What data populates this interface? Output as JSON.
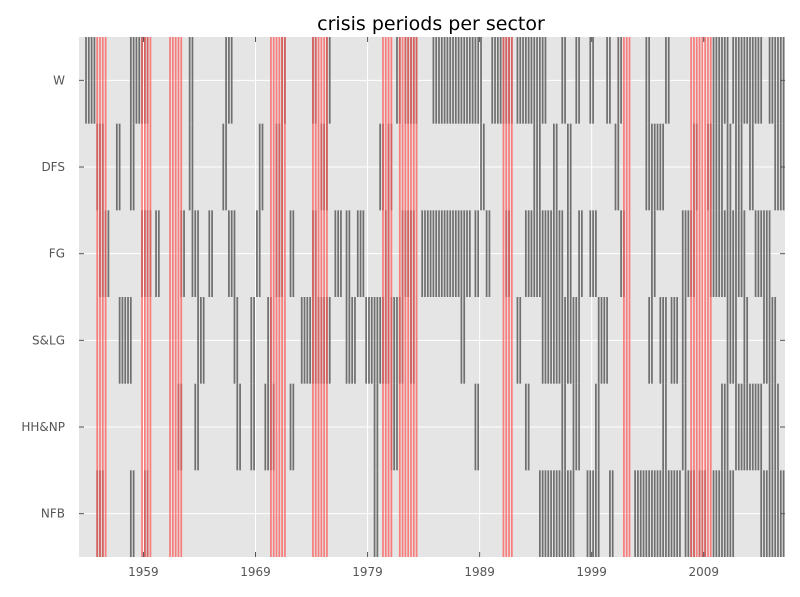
{
  "chart_data": {
    "type": "heatmap",
    "title": "crisis periods per sector",
    "xlabel": "",
    "ylabel": "",
    "grid": true,
    "background": "#e5e5e5",
    "xlim": [
      1953.25,
      2016.25
    ],
    "x_ticks": [
      1959,
      1969,
      1979,
      1989,
      1999,
      2009
    ],
    "x_tick_labels": [
      "1959",
      "1969",
      "1979",
      "1989",
      "1999",
      "2009"
    ],
    "sectors": [
      "W",
      "DFS",
      "FG",
      "S&LG",
      "HH&NP",
      "NFB"
    ],
    "sector_color": "#707070",
    "sector_periods": {
      "W": [
        [
          1953.75,
          1954.5
        ],
        [
          1957.75,
          1959.25
        ],
        [
          1963.0,
          1963.25
        ],
        [
          1966.25,
          1966.75
        ],
        [
          1971.25,
          1971.5
        ],
        [
          1974.0,
          1974.25
        ],
        [
          1975.25,
          1975.5
        ],
        [
          1981.5,
          1981.75
        ],
        [
          1982.25,
          1983.25
        ],
        [
          1984.75,
          1989.0
        ],
        [
          1990.0,
          1991.75
        ],
        [
          1992.25,
          1994.75
        ],
        [
          1996.25,
          1996.5
        ],
        [
          1997.5,
          1997.75
        ],
        [
          1998.75,
          1999.0
        ],
        [
          2000.25,
          2000.5
        ],
        [
          2001.25,
          2001.5
        ],
        [
          2003.75,
          2004.0
        ],
        [
          2005.5,
          2005.75
        ],
        [
          2009.75,
          2011.0
        ],
        [
          2011.5,
          2014.0
        ],
        [
          2014.75,
          2016.0
        ]
      ],
      "DFS": [
        [
          1954.75,
          1955.25
        ],
        [
          1956.5,
          1956.75
        ],
        [
          1957.75,
          1958.0
        ],
        [
          1963.0,
          1963.25
        ],
        [
          1966.0,
          1966.25
        ],
        [
          1969.25,
          1969.5
        ],
        [
          1970.75,
          1971.25
        ],
        [
          1974.75,
          1975.25
        ],
        [
          1980.0,
          1980.25
        ],
        [
          1980.75,
          1981.0
        ],
        [
          1989.0,
          1989.25
        ],
        [
          1993.75,
          1994.25
        ],
        [
          1995.5,
          1995.75
        ],
        [
          1996.75,
          1997.0
        ],
        [
          2001.0,
          2001.25
        ],
        [
          2003.75,
          2005.25
        ],
        [
          2008.0,
          2008.25
        ],
        [
          2009.25,
          2010.5
        ],
        [
          2011.0,
          2011.25
        ],
        [
          2011.75,
          2012.25
        ],
        [
          2013.0,
          2013.25
        ],
        [
          2015.25,
          2016.0
        ]
      ],
      "FG": [
        [
          1955.0,
          1955.75
        ],
        [
          1958.75,
          1959.5
        ],
        [
          1960.0,
          1960.25
        ],
        [
          1962.25,
          1962.5
        ],
        [
          1963.25,
          1963.75
        ],
        [
          1964.75,
          1965.0
        ],
        [
          1966.5,
          1967.0
        ],
        [
          1969.0,
          1969.25
        ],
        [
          1970.75,
          1971.25
        ],
        [
          1972.0,
          1972.25
        ],
        [
          1974.0,
          1974.25
        ],
        [
          1976.0,
          1976.5
        ],
        [
          1977.0,
          1977.25
        ],
        [
          1978.0,
          1978.5
        ],
        [
          1980.5,
          1980.75
        ],
        [
          1982.0,
          1983.0
        ],
        [
          1983.75,
          1988.0
        ],
        [
          1988.5,
          1988.75
        ],
        [
          1989.5,
          1989.75
        ],
        [
          1991.25,
          1991.5
        ],
        [
          1993.0,
          1996.25
        ],
        [
          1996.75,
          1997.0
        ],
        [
          1997.75,
          1998.0
        ],
        [
          1998.75,
          1999.25
        ],
        [
          2001.5,
          2001.75
        ],
        [
          2004.25,
          2004.5
        ],
        [
          2007.0,
          2008.0
        ],
        [
          2009.5,
          2012.5
        ],
        [
          2013.5,
          2014.75
        ]
      ],
      "S&LG": [
        [
          1956.75,
          1957.75
        ],
        [
          1963.75,
          1964.25
        ],
        [
          1967.0,
          1967.25
        ],
        [
          1968.5,
          1968.75
        ],
        [
          1970.0,
          1970.25
        ],
        [
          1973.0,
          1975.5
        ],
        [
          1977.0,
          1977.75
        ],
        [
          1978.75,
          1982.0
        ],
        [
          1982.75,
          1983.0
        ],
        [
          1987.25,
          1987.5
        ],
        [
          1992.25,
          1992.5
        ],
        [
          1994.5,
          1997.75
        ],
        [
          1999.5,
          2000.25
        ],
        [
          2004.0,
          2004.25
        ],
        [
          2005.0,
          2005.5
        ],
        [
          2006.0,
          2006.5
        ],
        [
          2007.0,
          2007.25
        ],
        [
          2011.0,
          2011.75
        ],
        [
          2012.5,
          2012.75
        ],
        [
          2014.25,
          2015.25
        ]
      ],
      "HH&NP": [
        [
          1962.0,
          1962.25
        ],
        [
          1963.5,
          1963.75
        ],
        [
          1967.25,
          1967.5
        ],
        [
          1968.5,
          1968.75
        ],
        [
          1969.75,
          1970.5
        ],
        [
          1972.0,
          1972.25
        ],
        [
          1979.5,
          1979.75
        ],
        [
          1981.0,
          1981.5
        ],
        [
          1988.5,
          1988.75
        ],
        [
          1993.0,
          1993.25
        ],
        [
          1996.25,
          1996.5
        ],
        [
          1997.25,
          1997.75
        ],
        [
          1999.25,
          1999.5
        ],
        [
          2005.25,
          2005.5
        ],
        [
          2007.0,
          2007.25
        ],
        [
          2010.5,
          2011.0
        ],
        [
          2011.75,
          2012.25
        ],
        [
          2012.5,
          2014.0
        ],
        [
          2014.75,
          2015.5
        ]
      ],
      "NFB": [
        [
          1954.75,
          1955.25
        ],
        [
          1957.75,
          1958.0
        ],
        [
          1959.0,
          1959.25
        ],
        [
          1979.5,
          1979.75
        ],
        [
          1994.25,
          1995.25
        ],
        [
          1995.5,
          1997.25
        ],
        [
          1998.5,
          1999.5
        ],
        [
          2000.5,
          2000.75
        ],
        [
          2002.75,
          2006.75
        ],
        [
          2007.25,
          2008.0
        ],
        [
          2008.5,
          2009.0
        ],
        [
          2009.75,
          2011.5
        ],
        [
          2014.0,
          2016.0
        ]
      ]
    },
    "crisis_color": "#ff5a5a",
    "crisis_dark_color": "#b04040",
    "crisis_periods": [
      [
        1954.75,
        1955.5
      ],
      [
        1958.75,
        1959.5
      ],
      [
        1961.25,
        1962.25
      ],
      [
        1970.25,
        1971.5
      ],
      [
        1974.0,
        1975.25
      ],
      [
        1980.25,
        1981.0
      ],
      [
        1981.75,
        1983.25
      ],
      [
        1991.0,
        1991.75
      ],
      [
        2001.75,
        2002.25
      ],
      [
        2007.75,
        2009.5
      ]
    ]
  }
}
